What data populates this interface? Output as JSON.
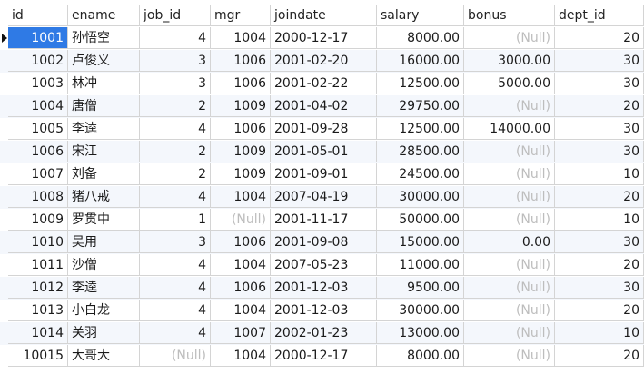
{
  "table": {
    "columns": [
      {
        "key": "id",
        "label": "id",
        "align": "right"
      },
      {
        "key": "ename",
        "label": "ename",
        "align": "left"
      },
      {
        "key": "job_id",
        "label": "job_id",
        "align": "right"
      },
      {
        "key": "mgr",
        "label": "mgr",
        "align": "right"
      },
      {
        "key": "joindate",
        "label": "joindate",
        "align": "left"
      },
      {
        "key": "salary",
        "label": "salary",
        "align": "right"
      },
      {
        "key": "bonus",
        "label": "bonus",
        "align": "right"
      },
      {
        "key": "dept_id",
        "label": "dept_id",
        "align": "right"
      }
    ],
    "null_text": "(Null)",
    "current_row_index": 0,
    "selected_cell": {
      "row": 0,
      "column": "id"
    },
    "rows": [
      {
        "id": "1001",
        "ename": "孙悟空",
        "job_id": "4",
        "mgr": "1004",
        "joindate": "2000-12-17",
        "salary": "8000.00",
        "bonus": null,
        "dept_id": "20"
      },
      {
        "id": "1002",
        "ename": "卢俊义",
        "job_id": "3",
        "mgr": "1006",
        "joindate": "2001-02-20",
        "salary": "16000.00",
        "bonus": "3000.00",
        "dept_id": "30"
      },
      {
        "id": "1003",
        "ename": "林冲",
        "job_id": "3",
        "mgr": "1006",
        "joindate": "2001-02-22",
        "salary": "12500.00",
        "bonus": "5000.00",
        "dept_id": "30"
      },
      {
        "id": "1004",
        "ename": "唐僧",
        "job_id": "2",
        "mgr": "1009",
        "joindate": "2001-04-02",
        "salary": "29750.00",
        "bonus": null,
        "dept_id": "20"
      },
      {
        "id": "1005",
        "ename": "李逵",
        "job_id": "4",
        "mgr": "1006",
        "joindate": "2001-09-28",
        "salary": "12500.00",
        "bonus": "14000.00",
        "dept_id": "30"
      },
      {
        "id": "1006",
        "ename": "宋江",
        "job_id": "2",
        "mgr": "1009",
        "joindate": "2001-05-01",
        "salary": "28500.00",
        "bonus": null,
        "dept_id": "30"
      },
      {
        "id": "1007",
        "ename": "刘备",
        "job_id": "2",
        "mgr": "1009",
        "joindate": "2001-09-01",
        "salary": "24500.00",
        "bonus": null,
        "dept_id": "10"
      },
      {
        "id": "1008",
        "ename": "猪八戒",
        "job_id": "4",
        "mgr": "1004",
        "joindate": "2007-04-19",
        "salary": "30000.00",
        "bonus": null,
        "dept_id": "20"
      },
      {
        "id": "1009",
        "ename": "罗贯中",
        "job_id": "1",
        "mgr": null,
        "joindate": "2001-11-17",
        "salary": "50000.00",
        "bonus": null,
        "dept_id": "10"
      },
      {
        "id": "1010",
        "ename": "吴用",
        "job_id": "3",
        "mgr": "1006",
        "joindate": "2001-09-08",
        "salary": "15000.00",
        "bonus": "0.00",
        "dept_id": "30"
      },
      {
        "id": "1011",
        "ename": "沙僧",
        "job_id": "4",
        "mgr": "1004",
        "joindate": "2007-05-23",
        "salary": "11000.00",
        "bonus": null,
        "dept_id": "20"
      },
      {
        "id": "1012",
        "ename": "李逵",
        "job_id": "4",
        "mgr": "1006",
        "joindate": "2001-12-03",
        "salary": "9500.00",
        "bonus": null,
        "dept_id": "30"
      },
      {
        "id": "1013",
        "ename": "小白龙",
        "job_id": "4",
        "mgr": "1004",
        "joindate": "2001-12-03",
        "salary": "30000.00",
        "bonus": null,
        "dept_id": "20"
      },
      {
        "id": "1014",
        "ename": "关羽",
        "job_id": "4",
        "mgr": "1007",
        "joindate": "2002-01-23",
        "salary": "13000.00",
        "bonus": null,
        "dept_id": "10"
      },
      {
        "id": "10015",
        "ename": "大哥大",
        "job_id": null,
        "mgr": "1004",
        "joindate": "2000-12-17",
        "salary": "8000.00",
        "bonus": null,
        "dept_id": "20"
      }
    ]
  },
  "colors": {
    "selection": "#2f7ae5",
    "alt_row": "#f4f7fc",
    "null_text": "#bdbdbd",
    "grid_line": "#d4d4d4"
  }
}
